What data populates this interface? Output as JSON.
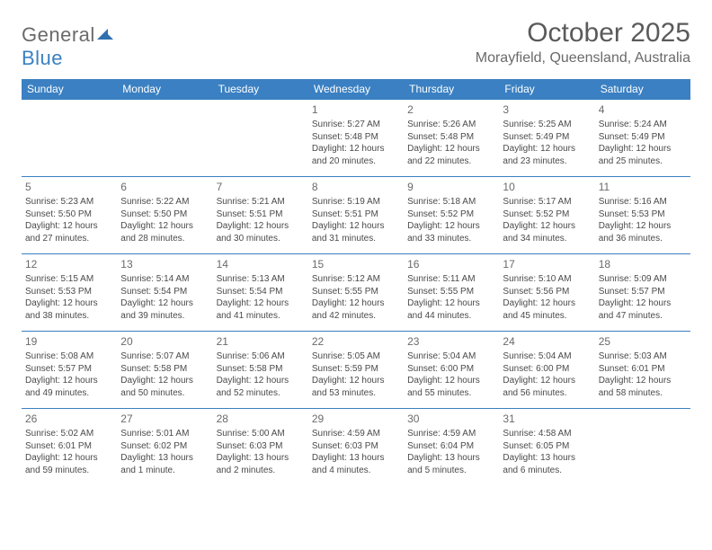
{
  "logo": {
    "text_part1": "General",
    "text_part2": "Blue",
    "shape_color": "#2f6fb0"
  },
  "title": "October 2025",
  "location": "Morayfield, Queensland, Australia",
  "colors": {
    "header_bg": "#3a80c2",
    "header_text": "#ffffff",
    "week_separator": "#3a80c2",
    "body_text": "#4a4a4a",
    "daynum_text": "#6a6a6a",
    "page_bg": "#ffffff"
  },
  "typography": {
    "title_fontsize": 30,
    "location_fontsize": 16,
    "day_header_fontsize": 12,
    "daynum_fontsize": 12,
    "cell_fontsize": 10
  },
  "day_headers": [
    "Sunday",
    "Monday",
    "Tuesday",
    "Wednesday",
    "Thursday",
    "Friday",
    "Saturday"
  ],
  "weeks": [
    [
      null,
      null,
      null,
      {
        "n": "1",
        "sr": "Sunrise: 5:27 AM",
        "ss": "Sunset: 5:48 PM",
        "d1": "Daylight: 12 hours",
        "d2": "and 20 minutes."
      },
      {
        "n": "2",
        "sr": "Sunrise: 5:26 AM",
        "ss": "Sunset: 5:48 PM",
        "d1": "Daylight: 12 hours",
        "d2": "and 22 minutes."
      },
      {
        "n": "3",
        "sr": "Sunrise: 5:25 AM",
        "ss": "Sunset: 5:49 PM",
        "d1": "Daylight: 12 hours",
        "d2": "and 23 minutes."
      },
      {
        "n": "4",
        "sr": "Sunrise: 5:24 AM",
        "ss": "Sunset: 5:49 PM",
        "d1": "Daylight: 12 hours",
        "d2": "and 25 minutes."
      }
    ],
    [
      {
        "n": "5",
        "sr": "Sunrise: 5:23 AM",
        "ss": "Sunset: 5:50 PM",
        "d1": "Daylight: 12 hours",
        "d2": "and 27 minutes."
      },
      {
        "n": "6",
        "sr": "Sunrise: 5:22 AM",
        "ss": "Sunset: 5:50 PM",
        "d1": "Daylight: 12 hours",
        "d2": "and 28 minutes."
      },
      {
        "n": "7",
        "sr": "Sunrise: 5:21 AM",
        "ss": "Sunset: 5:51 PM",
        "d1": "Daylight: 12 hours",
        "d2": "and 30 minutes."
      },
      {
        "n": "8",
        "sr": "Sunrise: 5:19 AM",
        "ss": "Sunset: 5:51 PM",
        "d1": "Daylight: 12 hours",
        "d2": "and 31 minutes."
      },
      {
        "n": "9",
        "sr": "Sunrise: 5:18 AM",
        "ss": "Sunset: 5:52 PM",
        "d1": "Daylight: 12 hours",
        "d2": "and 33 minutes."
      },
      {
        "n": "10",
        "sr": "Sunrise: 5:17 AM",
        "ss": "Sunset: 5:52 PM",
        "d1": "Daylight: 12 hours",
        "d2": "and 34 minutes."
      },
      {
        "n": "11",
        "sr": "Sunrise: 5:16 AM",
        "ss": "Sunset: 5:53 PM",
        "d1": "Daylight: 12 hours",
        "d2": "and 36 minutes."
      }
    ],
    [
      {
        "n": "12",
        "sr": "Sunrise: 5:15 AM",
        "ss": "Sunset: 5:53 PM",
        "d1": "Daylight: 12 hours",
        "d2": "and 38 minutes."
      },
      {
        "n": "13",
        "sr": "Sunrise: 5:14 AM",
        "ss": "Sunset: 5:54 PM",
        "d1": "Daylight: 12 hours",
        "d2": "and 39 minutes."
      },
      {
        "n": "14",
        "sr": "Sunrise: 5:13 AM",
        "ss": "Sunset: 5:54 PM",
        "d1": "Daylight: 12 hours",
        "d2": "and 41 minutes."
      },
      {
        "n": "15",
        "sr": "Sunrise: 5:12 AM",
        "ss": "Sunset: 5:55 PM",
        "d1": "Daylight: 12 hours",
        "d2": "and 42 minutes."
      },
      {
        "n": "16",
        "sr": "Sunrise: 5:11 AM",
        "ss": "Sunset: 5:55 PM",
        "d1": "Daylight: 12 hours",
        "d2": "and 44 minutes."
      },
      {
        "n": "17",
        "sr": "Sunrise: 5:10 AM",
        "ss": "Sunset: 5:56 PM",
        "d1": "Daylight: 12 hours",
        "d2": "and 45 minutes."
      },
      {
        "n": "18",
        "sr": "Sunrise: 5:09 AM",
        "ss": "Sunset: 5:57 PM",
        "d1": "Daylight: 12 hours",
        "d2": "and 47 minutes."
      }
    ],
    [
      {
        "n": "19",
        "sr": "Sunrise: 5:08 AM",
        "ss": "Sunset: 5:57 PM",
        "d1": "Daylight: 12 hours",
        "d2": "and 49 minutes."
      },
      {
        "n": "20",
        "sr": "Sunrise: 5:07 AM",
        "ss": "Sunset: 5:58 PM",
        "d1": "Daylight: 12 hours",
        "d2": "and 50 minutes."
      },
      {
        "n": "21",
        "sr": "Sunrise: 5:06 AM",
        "ss": "Sunset: 5:58 PM",
        "d1": "Daylight: 12 hours",
        "d2": "and 52 minutes."
      },
      {
        "n": "22",
        "sr": "Sunrise: 5:05 AM",
        "ss": "Sunset: 5:59 PM",
        "d1": "Daylight: 12 hours",
        "d2": "and 53 minutes."
      },
      {
        "n": "23",
        "sr": "Sunrise: 5:04 AM",
        "ss": "Sunset: 6:00 PM",
        "d1": "Daylight: 12 hours",
        "d2": "and 55 minutes."
      },
      {
        "n": "24",
        "sr": "Sunrise: 5:04 AM",
        "ss": "Sunset: 6:00 PM",
        "d1": "Daylight: 12 hours",
        "d2": "and 56 minutes."
      },
      {
        "n": "25",
        "sr": "Sunrise: 5:03 AM",
        "ss": "Sunset: 6:01 PM",
        "d1": "Daylight: 12 hours",
        "d2": "and 58 minutes."
      }
    ],
    [
      {
        "n": "26",
        "sr": "Sunrise: 5:02 AM",
        "ss": "Sunset: 6:01 PM",
        "d1": "Daylight: 12 hours",
        "d2": "and 59 minutes."
      },
      {
        "n": "27",
        "sr": "Sunrise: 5:01 AM",
        "ss": "Sunset: 6:02 PM",
        "d1": "Daylight: 13 hours",
        "d2": "and 1 minute."
      },
      {
        "n": "28",
        "sr": "Sunrise: 5:00 AM",
        "ss": "Sunset: 6:03 PM",
        "d1": "Daylight: 13 hours",
        "d2": "and 2 minutes."
      },
      {
        "n": "29",
        "sr": "Sunrise: 4:59 AM",
        "ss": "Sunset: 6:03 PM",
        "d1": "Daylight: 13 hours",
        "d2": "and 4 minutes."
      },
      {
        "n": "30",
        "sr": "Sunrise: 4:59 AM",
        "ss": "Sunset: 6:04 PM",
        "d1": "Daylight: 13 hours",
        "d2": "and 5 minutes."
      },
      {
        "n": "31",
        "sr": "Sunrise: 4:58 AM",
        "ss": "Sunset: 6:05 PM",
        "d1": "Daylight: 13 hours",
        "d2": "and 6 minutes."
      },
      null
    ]
  ]
}
